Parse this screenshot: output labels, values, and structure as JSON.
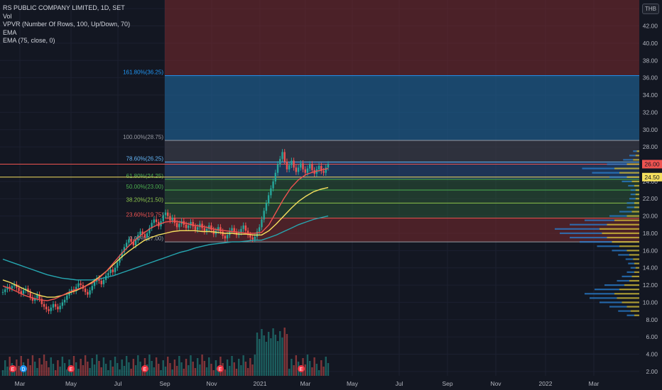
{
  "legend": {
    "title": "RS PUBLIC COMPANY LIMITED, 1D, SET",
    "vol": "Vol",
    "vpvr": "VPVR (Number Of Rows, 100, Up/Down, 70)",
    "ema1": "EMA",
    "ema2": "EMA (75, close, 0)"
  },
  "currency": "THB",
  "colors": {
    "background": "#131722",
    "up": "#26a69a",
    "down": "#ef5350",
    "ema_short": "#ef5350",
    "ema_mid": "#f6e05e",
    "ema_long": "#26a6b0",
    "fib_blue": "#1e5c8c",
    "fib_red": "#7a2a2e",
    "fib_green": "#2e5c3a"
  },
  "chart_data": {
    "type": "candlestick",
    "y_axis": {
      "ticks": [
        "2.00",
        "4.00",
        "6.00",
        "8.00",
        "10.00",
        "12.00",
        "14.00",
        "16.00",
        "18.00",
        "20.00",
        "22.00",
        "24.00",
        "26.00",
        "28.00",
        "30.00",
        "32.00",
        "34.00",
        "36.00",
        "38.00",
        "40.00",
        "42.00",
        "44.00"
      ],
      "range": [
        1.5,
        45.0
      ]
    },
    "x_axis": {
      "ticks": [
        "Mar",
        "May",
        "Jul",
        "Sep",
        "Nov",
        "2021",
        "Mar",
        "May",
        "Jul",
        "Sep",
        "Nov",
        "2022",
        "Mar"
      ]
    },
    "price_labels": [
      {
        "text": "26.00",
        "value": 26.0,
        "color": "#ef5350"
      },
      {
        "text": "24.50",
        "value": 24.5,
        "color": "#f6e05e"
      }
    ],
    "fib_levels": [
      {
        "label": "161.80%(36.25)",
        "value": 36.25,
        "color": "#2196f3"
      },
      {
        "label": "100.00%(28.75)",
        "value": 28.75,
        "color": "#9598a1"
      },
      {
        "label": "78.60%(26.25)",
        "value": 26.25,
        "color": "#64b5f6"
      },
      {
        "label": "61.80%(24.25)",
        "value": 24.25,
        "color": "#4caf50"
      },
      {
        "label": "50.00%(23.00)",
        "value": 23.0,
        "color": "#4caf50"
      },
      {
        "label": "38.20%(21.50)",
        "value": 21.5,
        "color": "#8bc34a"
      },
      {
        "label": "23.60%(19.75)",
        "value": 19.75,
        "color": "#ef5350"
      },
      {
        "label": "0.00%(17.00)",
        "value": 17.0,
        "color": "#9598a1"
      }
    ],
    "close_series": [
      11.2,
      11.5,
      11.8,
      11.6,
      11.9,
      12.1,
      11.7,
      11.3,
      11.0,
      11.4,
      11.6,
      11.2,
      10.6,
      10.2,
      10.5,
      10.9,
      10.4,
      9.8,
      9.5,
      9.2,
      9.0,
      9.4,
      9.8,
      9.5,
      9.2,
      9.6,
      10.0,
      10.3,
      10.8,
      11.2,
      11.5,
      11.3,
      11.8,
      12.2,
      12.0,
      11.6,
      11.2,
      10.9,
      11.4,
      11.9,
      12.4,
      12.8,
      12.5,
      12.1,
      12.6,
      13.1,
      13.4,
      13.8,
      13.5,
      14.0,
      14.6,
      15.2,
      15.8,
      16.4,
      16.9,
      17.3,
      17.0,
      16.6,
      17.2,
      17.8,
      18.2,
      17.9,
      17.5,
      18.0,
      18.6,
      19.2,
      19.6,
      19.3,
      18.8,
      19.4,
      20.1,
      20.4,
      20.0,
      19.5,
      19.8,
      19.2,
      18.7,
      19.1,
      19.4,
      19.0,
      18.6,
      18.9,
      19.3,
      18.8,
      18.4,
      18.7,
      19.1,
      18.6,
      18.2,
      18.5,
      18.9,
      18.4,
      17.9,
      18.3,
      18.7,
      18.2,
      17.7,
      17.4,
      17.8,
      18.3,
      18.6,
      18.2,
      17.8,
      18.1,
      18.5,
      18.9,
      18.3,
      17.8,
      17.5,
      17.3,
      17.6,
      18.2,
      18.7,
      19.6,
      20.6,
      21.5,
      22.4,
      23.2,
      24.0,
      25.0,
      26.0,
      26.6,
      27.4,
      26.3,
      25.4,
      25.9,
      26.4,
      25.6,
      25.1,
      25.6,
      26.1,
      25.4,
      25.0,
      25.5,
      26.0,
      25.3,
      24.9,
      25.4,
      25.8,
      25.2,
      25.0,
      25.6,
      26.0
    ],
    "ema_short": [
      11.9,
      11.6,
      11.2,
      10.8,
      10.5,
      10.3,
      10.2,
      10.4,
      10.8,
      11.2,
      11.5,
      11.8,
      12.2,
      12.8,
      13.6,
      14.6,
      15.6,
      16.5,
      17.3,
      18.0,
      18.6,
      19.0,
      19.3,
      19.4,
      19.3,
      19.1,
      18.9,
      18.8,
      18.6,
      18.4,
      18.3,
      18.2,
      18.1,
      18.0,
      18.0,
      18.1,
      19.0,
      20.5,
      22.0,
      23.3,
      24.2,
      24.8,
      25.1,
      25.3,
      25.5
    ],
    "ema_mid": [
      12.6,
      12.3,
      11.9,
      11.5,
      11.1,
      10.8,
      10.6,
      10.6,
      10.8,
      11.1,
      11.4,
      11.8,
      12.3,
      12.9,
      13.6,
      14.4,
      15.2,
      15.9,
      16.5,
      17.1,
      17.5,
      17.8,
      18.0,
      18.2,
      18.3,
      18.3,
      18.3,
      18.2,
      18.2,
      18.1,
      18.0,
      18.0,
      17.9,
      17.9,
      17.8,
      17.8,
      18.3,
      19.1,
      20.0,
      20.9,
      21.7,
      22.3,
      22.8,
      23.1,
      23.3
    ],
    "ema_long": [
      15.0,
      14.7,
      14.4,
      14.1,
      13.8,
      13.5,
      13.2,
      13.0,
      12.8,
      12.7,
      12.6,
      12.6,
      12.6,
      12.7,
      12.9,
      13.1,
      13.4,
      13.7,
      14.0,
      14.3,
      14.6,
      14.9,
      15.2,
      15.5,
      15.8,
      16.0,
      16.3,
      16.5,
      16.7,
      16.8,
      16.9,
      17.0,
      17.0,
      17.1,
      17.2,
      17.2,
      17.5,
      17.8,
      18.2,
      18.6,
      19.0,
      19.3,
      19.6,
      19.8,
      20.0
    ],
    "volume_profile": {
      "note": "",
      "bins": [
        {
          "price": 8.5,
          "up": 6,
          "down": 4
        },
        {
          "price": 9.0,
          "up": 10,
          "down": 7
        },
        {
          "price": 9.5,
          "up": 14,
          "down": 10
        },
        {
          "price": 10.0,
          "up": 18,
          "down": 14
        },
        {
          "price": 10.5,
          "up": 22,
          "down": 18
        },
        {
          "price": 11.0,
          "up": 24,
          "down": 20
        },
        {
          "price": 11.5,
          "up": 20,
          "down": 16
        },
        {
          "price": 12.0,
          "up": 16,
          "down": 12
        },
        {
          "price": 12.5,
          "up": 10,
          "down": 8
        },
        {
          "price": 13.0,
          "up": 8,
          "down": 6
        },
        {
          "price": 13.5,
          "up": 6,
          "down": 4
        },
        {
          "price": 14.0,
          "up": 4,
          "down": 3
        },
        {
          "price": 14.5,
          "up": 5,
          "down": 4
        },
        {
          "price": 15.0,
          "up": 6,
          "down": 5
        },
        {
          "price": 15.5,
          "up": 9,
          "down": 8
        },
        {
          "price": 16.0,
          "up": 12,
          "down": 10
        },
        {
          "price": 16.5,
          "up": 18,
          "down": 16
        },
        {
          "price": 17.0,
          "up": 26,
          "down": 22
        },
        {
          "price": 17.5,
          "up": 30,
          "down": 26
        },
        {
          "price": 18.0,
          "up": 34,
          "down": 30
        },
        {
          "price": 18.5,
          "up": 36,
          "down": 32
        },
        {
          "price": 19.0,
          "up": 30,
          "down": 26
        },
        {
          "price": 19.5,
          "up": 24,
          "down": 20
        },
        {
          "price": 20.0,
          "up": 14,
          "down": 10
        },
        {
          "price": 20.5,
          "up": 10,
          "down": 6
        },
        {
          "price": 21.0,
          "up": 6,
          "down": 4
        },
        {
          "price": 21.5,
          "up": 6,
          "down": 4
        },
        {
          "price": 22.0,
          "up": 5,
          "down": 3
        },
        {
          "price": 22.5,
          "up": 4,
          "down": 3
        },
        {
          "price": 23.0,
          "up": 4,
          "down": 3
        },
        {
          "price": 23.5,
          "up": 5,
          "down": 4
        },
        {
          "price": 24.0,
          "up": 8,
          "down": 6
        },
        {
          "price": 24.5,
          "up": 14,
          "down": 10
        },
        {
          "price": 25.0,
          "up": 22,
          "down": 16
        },
        {
          "price": 25.5,
          "up": 26,
          "down": 20
        },
        {
          "price": 26.0,
          "up": 16,
          "down": 10
        },
        {
          "price": 26.5,
          "up": 8,
          "down": 5
        },
        {
          "price": 27.0,
          "up": 5,
          "down": 3
        },
        {
          "price": 27.5,
          "up": 3,
          "down": 2
        }
      ]
    }
  }
}
